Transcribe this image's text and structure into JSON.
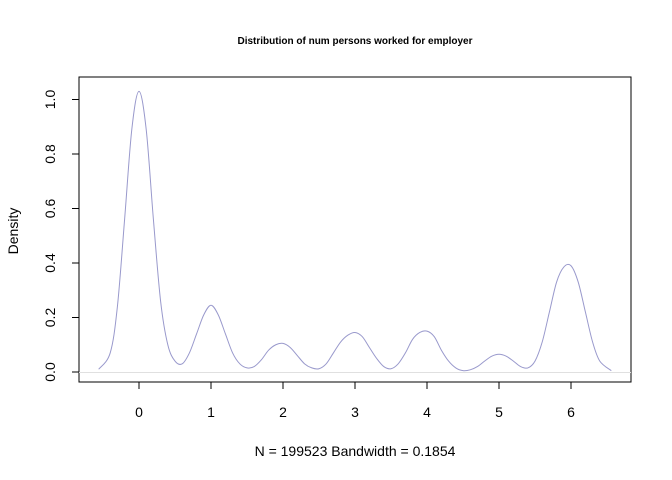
{
  "chart_data": {
    "type": "line",
    "title": "Distribution of num persons worked for employer",
    "xlabel": "N = 199523   Bandwidth = 0.1854",
    "ylabel": "Density",
    "xlim": [
      -0.6,
      6.6
    ],
    "ylim": [
      0,
      1.05
    ],
    "x_ticks": [
      "0",
      "1",
      "2",
      "3",
      "4",
      "5",
      "6"
    ],
    "y_ticks": [
      "0.0",
      "0.2",
      "0.4",
      "0.6",
      "0.8",
      "1.0"
    ],
    "line_color": "#9999cc",
    "series": [
      {
        "name": "",
        "x": [
          -0.56,
          -0.4,
          -0.3,
          -0.2,
          -0.1,
          0,
          0.1,
          0.2,
          0.3,
          0.4,
          0.5,
          0.6,
          0.7,
          0.8,
          0.9,
          1,
          1.1,
          1.2,
          1.3,
          1.4,
          1.5,
          1.6,
          1.7,
          1.8,
          1.9,
          2,
          2.1,
          2.2,
          2.3,
          2.4,
          2.5,
          2.6,
          2.7,
          2.8,
          2.9,
          3,
          3.1,
          3.2,
          3.3,
          3.4,
          3.5,
          3.6,
          3.7,
          3.8,
          3.9,
          4,
          4.1,
          4.2,
          4.3,
          4.4,
          4.5,
          4.6,
          4.7,
          4.8,
          4.9,
          5,
          5.1,
          5.2,
          5.3,
          5.4,
          5.5,
          5.6,
          5.7,
          5.8,
          5.9,
          6,
          6.1,
          6.2,
          6.3,
          6.4,
          6.56
        ],
        "y": [
          0.01,
          0.07,
          0.24,
          0.56,
          0.89,
          1.03,
          0.89,
          0.56,
          0.26,
          0.1,
          0.04,
          0.03,
          0.07,
          0.14,
          0.21,
          0.245,
          0.21,
          0.14,
          0.07,
          0.03,
          0.015,
          0.02,
          0.045,
          0.08,
          0.1,
          0.105,
          0.09,
          0.06,
          0.03,
          0.015,
          0.012,
          0.03,
          0.07,
          0.11,
          0.135,
          0.145,
          0.13,
          0.09,
          0.05,
          0.02,
          0.012,
          0.03,
          0.07,
          0.12,
          0.145,
          0.15,
          0.13,
          0.08,
          0.04,
          0.015,
          0.005,
          0.008,
          0.02,
          0.04,
          0.058,
          0.065,
          0.058,
          0.04,
          0.02,
          0.015,
          0.04,
          0.11,
          0.22,
          0.33,
          0.385,
          0.39,
          0.33,
          0.22,
          0.11,
          0.04,
          0.005
        ]
      }
    ]
  }
}
